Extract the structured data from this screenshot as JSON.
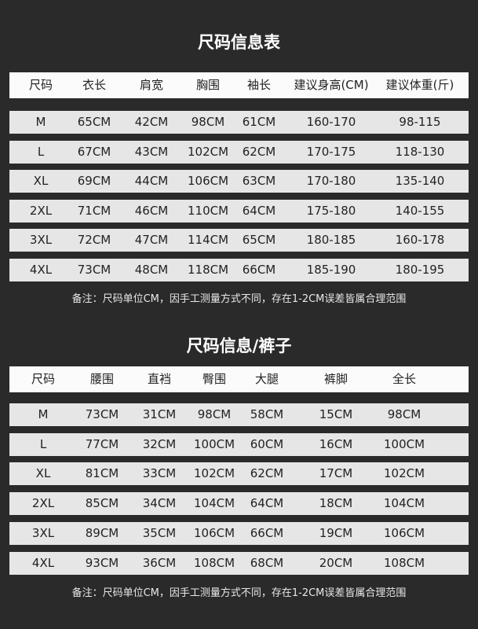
{
  "tables": [
    {
      "title": "尺码信息表",
      "headers": [
        "尺码",
        "衣长",
        "肩宽",
        "胸围",
        "袖长",
        "建议身高(CM)",
        "建议体重(斤)"
      ],
      "rows": [
        [
          "M",
          "65CM",
          "42CM",
          "98CM",
          "61CM",
          "160-170",
          "98-115"
        ],
        [
          "L",
          "67CM",
          "43CM",
          "102CM",
          "62CM",
          "170-175",
          "118-130"
        ],
        [
          "XL",
          "69CM",
          "44CM",
          "106CM",
          "63CM",
          "170-180",
          "135-140"
        ],
        [
          "2XL",
          "71CM",
          "46CM",
          "110CM",
          "64CM",
          "175-180",
          "140-155"
        ],
        [
          "3XL",
          "72CM",
          "47CM",
          "114CM",
          "65CM",
          "180-185",
          "160-178"
        ],
        [
          "4XL",
          "73CM",
          "48CM",
          "118CM",
          "66CM",
          "185-190",
          "180-195"
        ]
      ],
      "note": "备注：尺码单位CM，因手工测量方式不同，存在1-2CM误差皆属合理范围"
    },
    {
      "title": "尺码信息/裤子",
      "headers": [
        "尺码",
        "腰围",
        "直裆",
        "臀围",
        "大腿",
        "裤脚",
        "全长"
      ],
      "rows": [
        [
          "M",
          "73CM",
          "31CM",
          "98CM",
          "58CM",
          "15CM",
          "98CM"
        ],
        [
          "L",
          "77CM",
          "32CM",
          "100CM",
          "60CM",
          "16CM",
          "100CM"
        ],
        [
          "XL",
          "81CM",
          "33CM",
          "102CM",
          "62CM",
          "17CM",
          "102CM"
        ],
        [
          "2XL",
          "85CM",
          "34CM",
          "104CM",
          "64CM",
          "18CM",
          "104CM"
        ],
        [
          "3XL",
          "89CM",
          "35CM",
          "106CM",
          "66CM",
          "19CM",
          "106CM"
        ],
        [
          "4XL",
          "93CM",
          "36CM",
          "108CM",
          "68CM",
          "20CM",
          "108CM"
        ]
      ],
      "note": "备注：尺码单位CM，因手工测量方式不同，存在1-2CM误差皆属合理范围"
    }
  ]
}
